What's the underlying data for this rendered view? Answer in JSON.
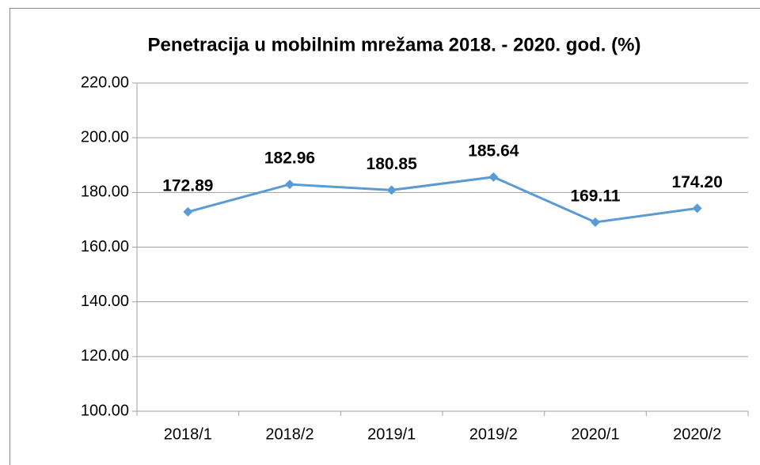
{
  "chart_data": {
    "type": "line",
    "title": "Penetracija u mobilnim mrežama 2018. - 2020. god. (%)",
    "categories": [
      "2018/1",
      "2018/2",
      "2019/1",
      "2019/2",
      "2020/1",
      "2020/2"
    ],
    "series": [
      {
        "name": "Penetracija",
        "color": "#5b9bd5",
        "values": [
          172.89,
          182.96,
          180.85,
          185.64,
          169.11,
          174.2
        ],
        "value_labels": [
          "172.89",
          "182.96",
          "180.85",
          "185.64",
          "169.11",
          "174.20"
        ]
      }
    ],
    "ylim": [
      100,
      220
    ],
    "yticks": [
      {
        "value": 100,
        "label": "100.00"
      },
      {
        "value": 120,
        "label": "120.00"
      },
      {
        "value": 140,
        "label": "140.00"
      },
      {
        "value": 160,
        "label": "160.00"
      },
      {
        "value": 180,
        "label": "180.00"
      },
      {
        "value": 200,
        "label": "200.00"
      },
      {
        "value": 220,
        "label": "220.00"
      }
    ],
    "grid": true
  }
}
